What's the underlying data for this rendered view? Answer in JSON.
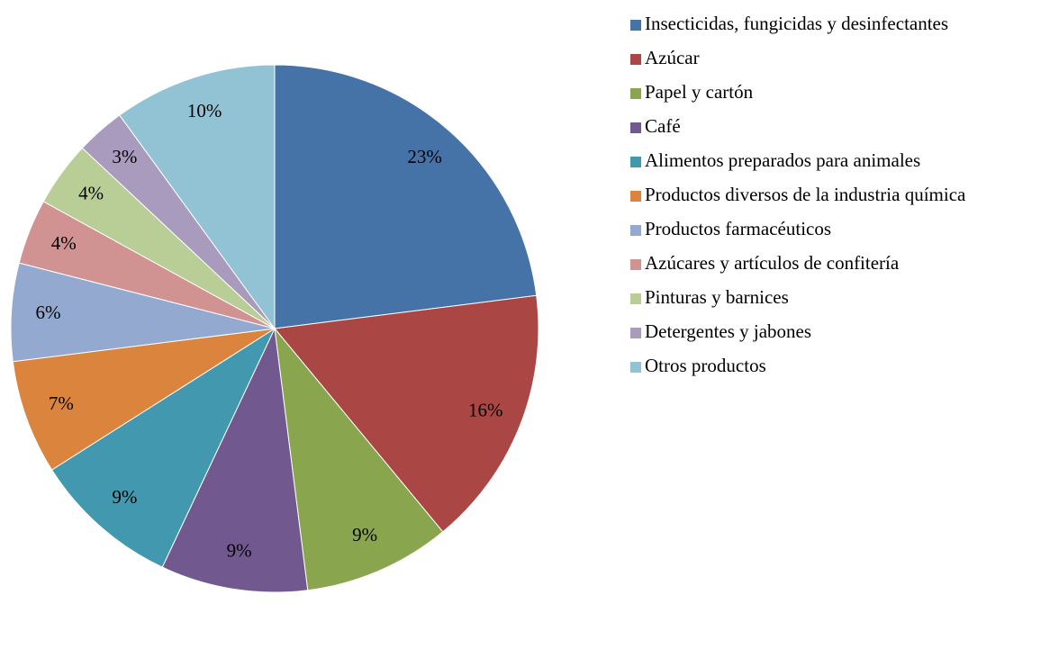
{
  "chart_data": {
    "type": "pie",
    "categories": [
      "Insecticidas, fungicidas y desinfectantes",
      "Azúcar",
      "Papel y cartón",
      "Café",
      "Alimentos preparados para animales",
      "Productos diversos de la industria química",
      "Productos farmacéuticos",
      "Azúcares y artículos de confitería",
      "Pinturas y barnices",
      "Detergentes y jabones",
      "Otros productos"
    ],
    "values": [
      23,
      16,
      9,
      9,
      9,
      7,
      6,
      4,
      4,
      3,
      10
    ],
    "value_labels": [
      "23%",
      "16%",
      "9%",
      "9%",
      "9%",
      "7%",
      "6%",
      "4%",
      "4%",
      "3%",
      "10%"
    ],
    "colors": [
      "#4572a7",
      "#aa4643",
      "#89a54e",
      "#71588f",
      "#4198af",
      "#db843d",
      "#93a9cf",
      "#d19392",
      "#b9cd96",
      "#a99bbd",
      "#92c3d4"
    ],
    "legend": "right"
  }
}
